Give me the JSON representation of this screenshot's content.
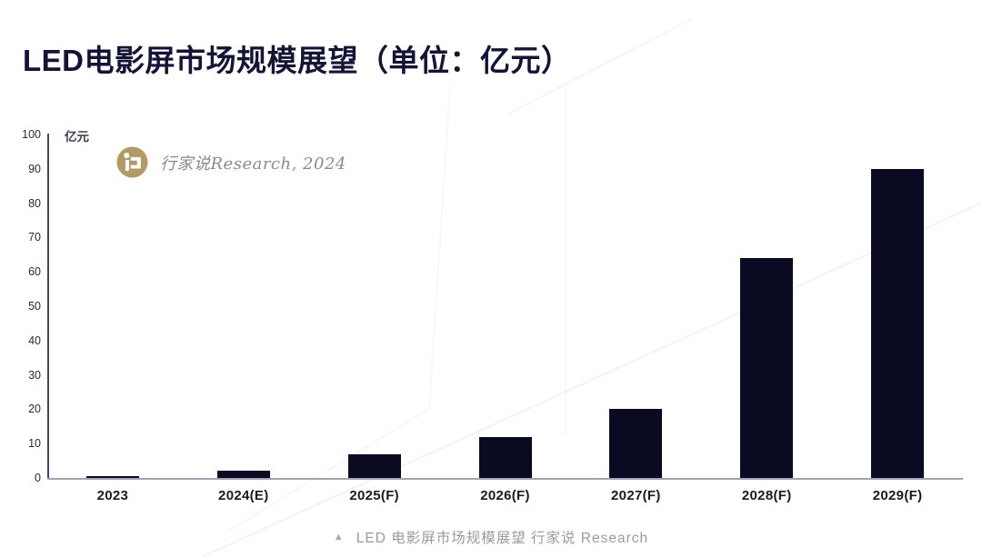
{
  "page": {
    "title": "LED电影屏市场规模展望（单位：亿元）",
    "caption_marker": "▲",
    "caption": "LED 电影屏市场规模展望 行家说 Research"
  },
  "watermark": {
    "logo_icon": "hangjiashuo-logo",
    "text": "行家说Research, 2024"
  },
  "chart_data": {
    "type": "bar",
    "title": "LED电影屏市场规模展望（单位：亿元）",
    "unit_label": "亿元",
    "categories": [
      "2023",
      "2024(E)",
      "2025(F)",
      "2026(F)",
      "2027(F)",
      "2028(F)",
      "2029(F)"
    ],
    "values": [
      0.6,
      2,
      7,
      12,
      20,
      64,
      90
    ],
    "xlabel": "",
    "ylabel": "亿元",
    "ylim": [
      0,
      100
    ],
    "yticks": [
      0,
      10,
      20,
      30,
      40,
      50,
      60,
      70,
      80,
      90,
      100
    ],
    "grid": false,
    "legend": "none",
    "data_labels": false
  },
  "colors": {
    "bar": "#0a0a23",
    "title": "#14143a",
    "tick": "#2b2b2b",
    "xlabel": "#1b1b1b",
    "unit": "#3c3c55",
    "y_axis": "#45456a",
    "x_axis": "#a2a2b4",
    "caption": "#9b9b9b",
    "caption_tri": "#a9a9a9",
    "brand_gold": "#b39a63",
    "brand_text": "#8b8b8b",
    "faint_line": "rgba(90,90,120,0.07)"
  }
}
